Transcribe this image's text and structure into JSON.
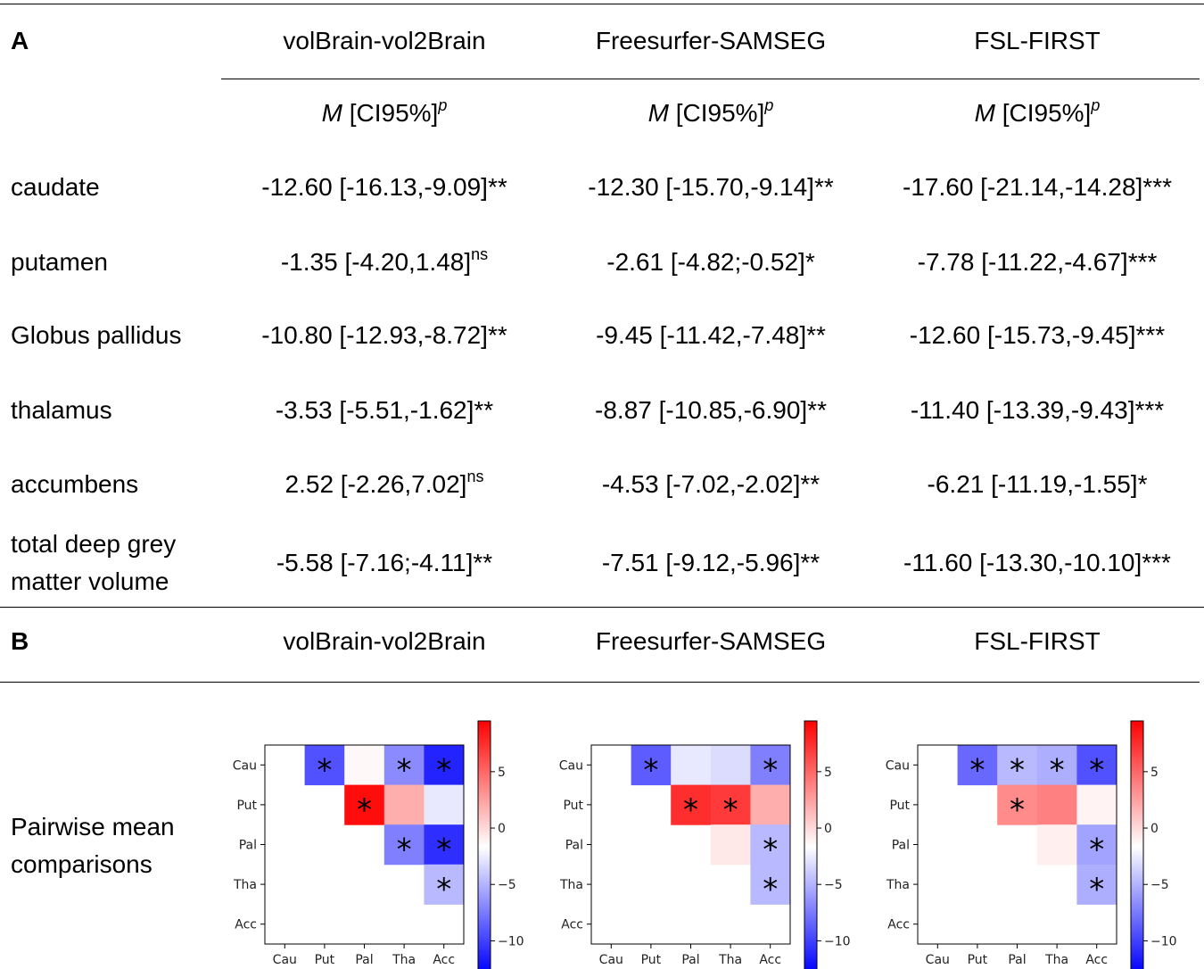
{
  "panel_a": {
    "label": "A",
    "columns": [
      "volBrain-vol2Brain",
      "Freesurfer-SAMSEG",
      "FSL-FIRST"
    ],
    "stat_header": {
      "m": "M",
      "rest": " [CI95%]",
      "sup": "p"
    },
    "rows": [
      {
        "name": "caudate",
        "cells": [
          {
            "text": "-12.60 [-16.13,-9.09]**",
            "sup": ""
          },
          {
            "text": "-12.30 [-15.70,-9.14]**",
            "sup": ""
          },
          {
            "text": "-17.60 [-21.14,-14.28]***",
            "sup": ""
          }
        ]
      },
      {
        "name": "putamen",
        "cells": [
          {
            "text": "-1.35 [-4.20,1.48]",
            "sup": "ns"
          },
          {
            "text": "-2.61 [-4.82;-0.52]*",
            "sup": ""
          },
          {
            "text": "-7.78 [-11.22,-4.67]***",
            "sup": ""
          }
        ]
      },
      {
        "name": "Globus pallidus",
        "cells": [
          {
            "text": "-10.80 [-12.93,-8.72]**",
            "sup": ""
          },
          {
            "text": "-9.45 [-11.42,-7.48]**",
            "sup": ""
          },
          {
            "text": "-12.60 [-15.73,-9.45]***",
            "sup": ""
          }
        ]
      },
      {
        "name": "thalamus",
        "cells": [
          {
            "text": "-3.53 [-5.51,-1.62]**",
            "sup": ""
          },
          {
            "text": "-8.87 [-10.85,-6.90]**",
            "sup": ""
          },
          {
            "text": "-11.40 [-13.39,-9.43]***",
            "sup": ""
          }
        ]
      },
      {
        "name": "accumbens",
        "cells": [
          {
            "text": "2.52 [-2.26,7.02]",
            "sup": "ns"
          },
          {
            "text": "-4.53 [-7.02,-2.02]**",
            "sup": ""
          },
          {
            "text": "-6.21 [-11.19,-1.55]*",
            "sup": ""
          }
        ]
      },
      {
        "name_lines": [
          "total deep grey",
          "matter volume"
        ],
        "cells": [
          {
            "text": "-5.58 [-7.16;-4.11]**",
            "sup": ""
          },
          {
            "text": "-7.51 [-9.12,-5.96]**",
            "sup": ""
          },
          {
            "text": "-11.60 [-13.30,-10.10]***",
            "sup": ""
          }
        ]
      }
    ]
  },
  "panel_b": {
    "label": "B",
    "columns": [
      "volBrain-vol2Brain",
      "Freesurfer-SAMSEG",
      "FSL-FIRST"
    ],
    "row_label_lines": [
      "Pairwise mean",
      "comparisons"
    ]
  },
  "chart_data": [
    {
      "type": "heatmap",
      "title": "volBrain-vol2Brain",
      "x_labels": [
        "Cau",
        "Put",
        "Pal",
        "Tha",
        "Acc"
      ],
      "y_labels": [
        "Cau",
        "Put",
        "Pal",
        "Tha",
        "Acc"
      ],
      "values": [
        [
          null,
          -9.0,
          -1.2,
          -6.5,
          -11.0
        ],
        [
          null,
          null,
          9.0,
          2.0,
          -2.5
        ],
        [
          null,
          null,
          null,
          -7.0,
          -10.5
        ],
        [
          null,
          null,
          null,
          null,
          -4.5
        ],
        [
          null,
          null,
          null,
          null,
          null
        ]
      ],
      "significant": [
        [
          false,
          true,
          false,
          true,
          true
        ],
        [
          false,
          false,
          true,
          false,
          false
        ],
        [
          false,
          false,
          false,
          true,
          true
        ],
        [
          false,
          false,
          false,
          false,
          true
        ],
        [
          false,
          false,
          false,
          false,
          false
        ]
      ],
      "colorbar_ticks": [
        5,
        0,
        -5,
        -10
      ],
      "colorbar_tick_labels": [
        "5",
        "0",
        "−5",
        "−10"
      ],
      "vrange": [
        -12.5,
        9.5
      ],
      "colormap": "bwr"
    },
    {
      "type": "heatmap",
      "title": "Freesurfer-SAMSEG",
      "x_labels": [
        "Cau",
        "Put",
        "Pal",
        "Tha",
        "Acc"
      ],
      "y_labels": [
        "Cau",
        "Put",
        "Pal",
        "Tha",
        "Acc"
      ],
      "values": [
        [
          null,
          -8.5,
          -2.5,
          -3.0,
          -7.0
        ],
        [
          null,
          null,
          7.5,
          7.0,
          2.0
        ],
        [
          null,
          null,
          null,
          -0.5,
          -4.5
        ],
        [
          null,
          null,
          null,
          null,
          -4.5
        ],
        [
          null,
          null,
          null,
          null,
          null
        ]
      ],
      "significant": [
        [
          false,
          true,
          false,
          false,
          true
        ],
        [
          false,
          false,
          true,
          true,
          false
        ],
        [
          false,
          false,
          false,
          false,
          true
        ],
        [
          false,
          false,
          false,
          false,
          true
        ],
        [
          false,
          false,
          false,
          false,
          false
        ]
      ],
      "colorbar_ticks": [
        5,
        0,
        -5,
        -10
      ],
      "colorbar_tick_labels": [
        "5",
        "0",
        "−5",
        "−10"
      ],
      "vrange": [
        -12.5,
        9.5
      ],
      "colormap": "bwr"
    },
    {
      "type": "heatmap",
      "title": "FSL-FIRST",
      "x_labels": [
        "Cau",
        "Put",
        "Pal",
        "Tha",
        "Acc"
      ],
      "y_labels": [
        "Cau",
        "Put",
        "Pal",
        "Tha",
        "Acc"
      ],
      "values": [
        [
          null,
          -8.0,
          -4.5,
          -5.0,
          -9.0
        ],
        [
          null,
          null,
          3.5,
          4.0,
          -1.0
        ],
        [
          null,
          null,
          null,
          -0.8,
          -5.5
        ],
        [
          null,
          null,
          null,
          null,
          -5.0
        ],
        [
          null,
          null,
          null,
          null,
          null
        ]
      ],
      "significant": [
        [
          false,
          true,
          true,
          true,
          true
        ],
        [
          false,
          false,
          true,
          false,
          false
        ],
        [
          false,
          false,
          false,
          false,
          true
        ],
        [
          false,
          false,
          false,
          false,
          true
        ],
        [
          false,
          false,
          false,
          false,
          false
        ]
      ],
      "colorbar_ticks": [
        5,
        0,
        -5,
        -10
      ],
      "colorbar_tick_labels": [
        "5",
        "0",
        "−5",
        "−10"
      ],
      "vrange": [
        -12.5,
        9.5
      ],
      "colormap": "bwr"
    }
  ]
}
